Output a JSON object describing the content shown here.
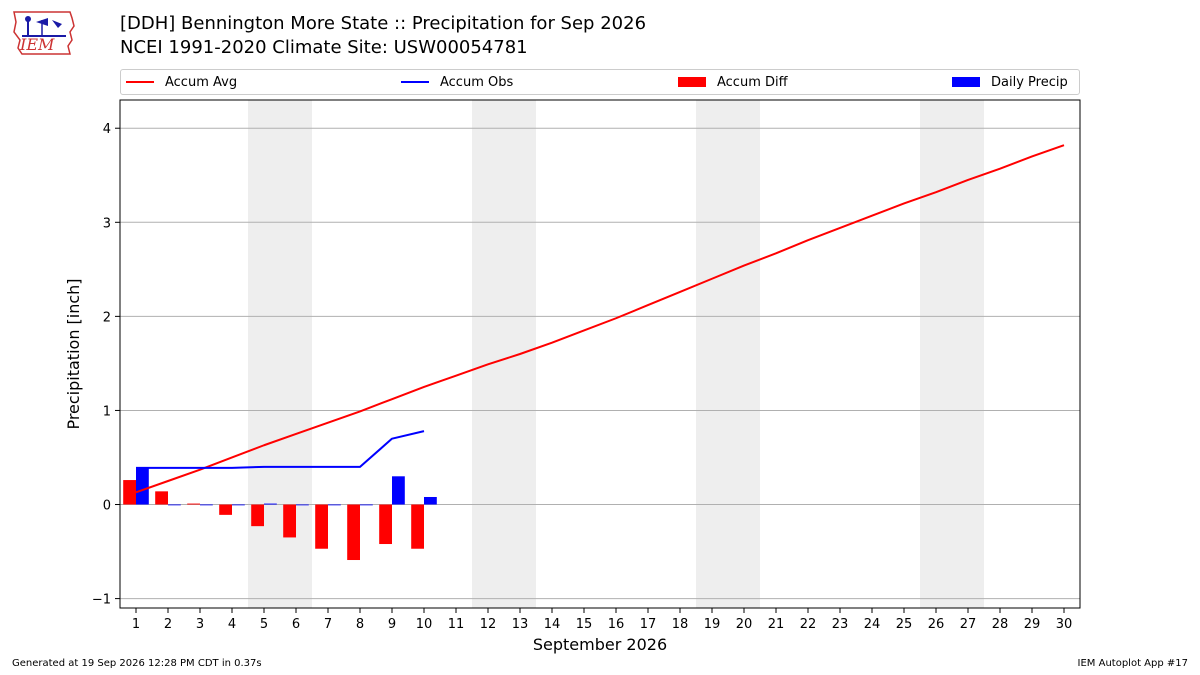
{
  "header": {
    "title_line1": "[DDH] Bennington More State :: Precipitation for Sep 2026",
    "title_line2": "NCEI 1991-2020 Climate Site: USW00054781"
  },
  "logo": {
    "text": "IEM"
  },
  "footer": {
    "left": "Generated at 19 Sep 2026 12:28 PM CDT in 0.37s",
    "right": "IEM Autoplot App #17"
  },
  "legend": {
    "accum_avg": "Accum Avg",
    "accum_obs": "Accum Obs",
    "accum_diff": "Accum Diff",
    "daily_precip": "Daily Precip"
  },
  "colors": {
    "accum_avg": "#ff0000",
    "accum_obs": "#0000ff",
    "accum_diff": "#ff0000",
    "daily_precip": "#0000ff",
    "weekend_shade": "#eeeeee",
    "grid": "#b0b0b0"
  },
  "chart_data": {
    "type": "bar",
    "title": "[DDH] Bennington More State :: Precipitation for Sep 2026",
    "subtitle": "NCEI 1991-2020 Climate Site: USW00054781",
    "xlabel": "September 2026",
    "ylabel": "Precipitation [inch]",
    "xlim": [
      0.5,
      30.5
    ],
    "ylim": [
      -1.1,
      4.3
    ],
    "yticks": [
      -1,
      0,
      1,
      2,
      3,
      4
    ],
    "ytick_labels": [
      "−1",
      "0",
      "1",
      "2",
      "3",
      "4"
    ],
    "x": [
      1,
      2,
      3,
      4,
      5,
      6,
      7,
      8,
      9,
      10,
      11,
      12,
      13,
      14,
      15,
      16,
      17,
      18,
      19,
      20,
      21,
      22,
      23,
      24,
      25,
      26,
      27,
      28,
      29,
      30
    ],
    "xtick_labels": [
      "1",
      "2",
      "3",
      "4",
      "5",
      "6",
      "7",
      "8",
      "9",
      "10",
      "11",
      "12",
      "13",
      "14",
      "15",
      "16",
      "17",
      "18",
      "19",
      "20",
      "21",
      "22",
      "23",
      "24",
      "25",
      "26",
      "27",
      "28",
      "29",
      "30"
    ],
    "weekend_spans": [
      [
        4.5,
        6.5
      ],
      [
        11.5,
        13.5
      ],
      [
        18.5,
        20.5
      ],
      [
        25.5,
        27.5
      ]
    ],
    "grid": "horizontal",
    "legend_position": "top",
    "series": [
      {
        "name": "Accum Avg",
        "kind": "line",
        "x": [
          1,
          2,
          3,
          4,
          5,
          6,
          7,
          8,
          9,
          10,
          11,
          12,
          13,
          14,
          15,
          16,
          17,
          18,
          19,
          20,
          21,
          22,
          23,
          24,
          25,
          26,
          27,
          28,
          29,
          30
        ],
        "values": [
          0.13,
          0.25,
          0.37,
          0.5,
          0.63,
          0.75,
          0.87,
          0.99,
          1.12,
          1.25,
          1.37,
          1.49,
          1.6,
          1.72,
          1.85,
          1.98,
          2.12,
          2.26,
          2.4,
          2.54,
          2.67,
          2.81,
          2.94,
          3.07,
          3.2,
          3.32,
          3.45,
          3.57,
          3.7,
          3.82
        ]
      },
      {
        "name": "Accum Obs",
        "kind": "line",
        "x": [
          1,
          2,
          3,
          4,
          5,
          6,
          7,
          8,
          9,
          10
        ],
        "values": [
          0.39,
          0.39,
          0.39,
          0.39,
          0.4,
          0.4,
          0.4,
          0.4,
          0.7,
          0.78
        ]
      },
      {
        "name": "Accum Diff",
        "kind": "bar",
        "x": [
          1,
          2,
          3,
          4,
          5,
          6,
          7,
          8,
          9,
          10
        ],
        "values": [
          0.26,
          0.14,
          0.01,
          -0.11,
          -0.23,
          -0.35,
          -0.47,
          -0.59,
          -0.42,
          -0.47
        ]
      },
      {
        "name": "Daily Precip",
        "kind": "bar",
        "x": [
          1,
          2,
          3,
          4,
          5,
          6,
          7,
          8,
          9,
          10
        ],
        "values": [
          0.39,
          0.0,
          0.0,
          0.0,
          0.01,
          0.0,
          0.0,
          0.0,
          0.3,
          0.08
        ]
      }
    ]
  }
}
